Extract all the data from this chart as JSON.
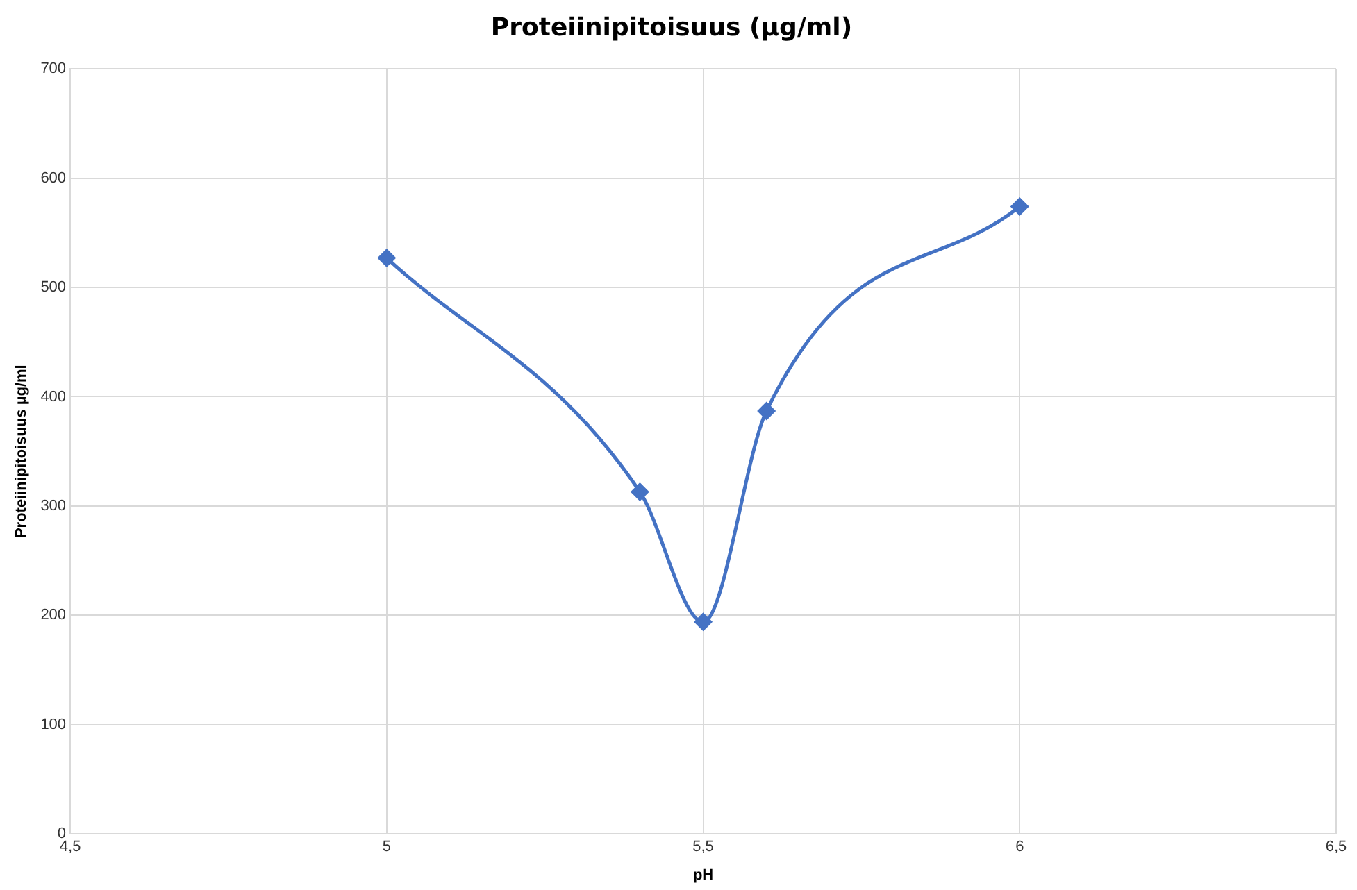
{
  "chart_data": {
    "type": "line",
    "title": "Proteiinipitoisuus (µg/ml)",
    "xlabel": "pH",
    "ylabel": "Proteiinipitoisuus µg/ml",
    "series": [
      {
        "color": "#4472c4",
        "x": [
          5,
          5.4,
          5.5,
          5.6,
          6
        ],
        "values": [
          527,
          313,
          194,
          387,
          574
        ]
      }
    ],
    "xlim": [
      4.5,
      6.5
    ],
    "xticks": [
      {
        "value": 4.5,
        "label": "4,5"
      },
      5,
      {
        "value": 5.5,
        "label": "5,5"
      },
      6,
      {
        "value": 6.5,
        "label": "6,5"
      }
    ],
    "ylim": [
      0,
      700
    ],
    "yticks": [
      0,
      100,
      200,
      300,
      400,
      500,
      600,
      700
    ],
    "grid": true,
    "marker": "diamond",
    "line_style": "solid"
  }
}
